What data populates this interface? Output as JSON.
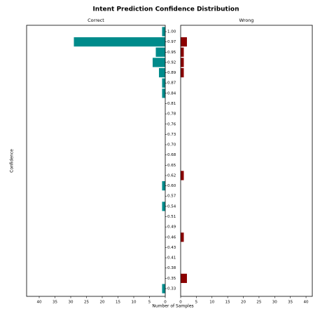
{
  "chart_data": {
    "type": "bar",
    "orientation": "horizontal",
    "title": "Intent Prediction Confidence Distribution",
    "ylabel": "Confidence",
    "xlabel": "Number of Samples",
    "categories": [
      "0.33",
      "0.35",
      "0.38",
      "0.41",
      "0.43",
      "0.46",
      "0.49",
      "0.51",
      "0.54",
      "0.57",
      "0.60",
      "0.62",
      "0.65",
      "0.68",
      "0.70",
      "0.73",
      "0.76",
      "0.78",
      "0.81",
      "0.84",
      "0.87",
      "0.89",
      "0.92",
      "0.95",
      "0.97",
      "1.00"
    ],
    "series": [
      {
        "name": "Correct",
        "color": "#008b8b",
        "xlim": [
          44,
          0
        ],
        "values": [
          1,
          0,
          0,
          0,
          0,
          0,
          0,
          0,
          1,
          0,
          1,
          0,
          0,
          0,
          0,
          0,
          0,
          0,
          0,
          1,
          1,
          2,
          4,
          3,
          29,
          1
        ]
      },
      {
        "name": "Wrong",
        "color": "#8b0000",
        "xlim": [
          0,
          42
        ],
        "values": [
          0,
          2,
          0,
          0,
          0,
          1,
          0,
          0,
          0,
          0,
          0,
          1,
          0,
          0,
          0,
          0,
          0,
          0,
          0,
          0,
          0,
          1,
          1,
          1,
          2,
          0
        ]
      }
    ],
    "xticks": [
      0,
      5,
      10,
      15,
      20,
      25,
      30,
      35,
      40
    ]
  }
}
